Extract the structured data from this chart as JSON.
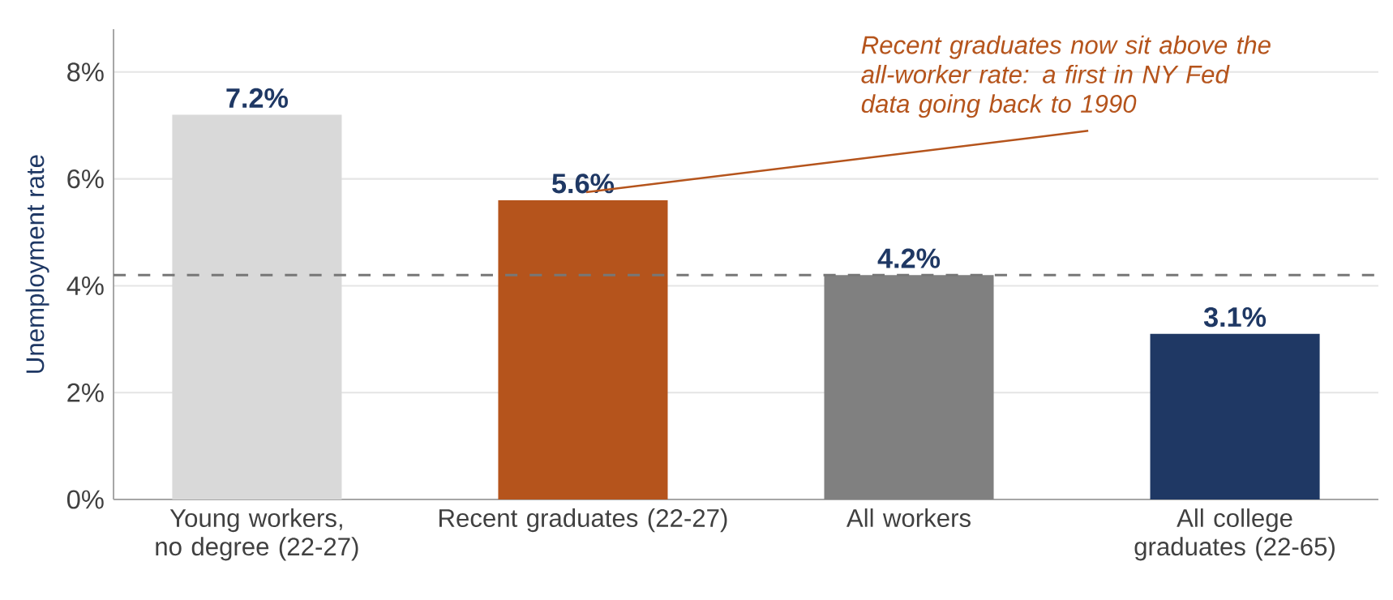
{
  "chart_data": {
    "type": "bar",
    "ylabel": "Unemployment rate",
    "categories": [
      "Young workers, no degree (22-27)",
      "Recent graduates (22-27)",
      "All workers",
      "All college graduates (22-65)"
    ],
    "values": [
      7.2,
      5.6,
      4.2,
      3.1
    ],
    "colors": [
      "#d9d9d9",
      "#b5541c",
      "#808080",
      "#1f3864"
    ],
    "value_labels": [
      "7.2%",
      "5.6%",
      "4.2%",
      "3.1%"
    ],
    "ylim": [
      0,
      8.8
    ],
    "yticks": [
      {
        "value": 0,
        "label": "0%"
      },
      {
        "value": 2,
        "label": "2%"
      },
      {
        "value": 4,
        "label": "4%"
      },
      {
        "value": 6,
        "label": "6%"
      },
      {
        "value": 8,
        "label": "8%"
      }
    ],
    "grid": "y",
    "ref_lines": [
      {
        "axis": "y",
        "value": 4.2,
        "color": "#777777",
        "line_style": "dashed"
      }
    ],
    "annotations": [
      {
        "text": "Recent graduates now sit above the all-worker rate: a first in NY Fed data going back to 1990",
        "x": "Recent graduates (22-27)",
        "y": 5.6
      }
    ]
  }
}
